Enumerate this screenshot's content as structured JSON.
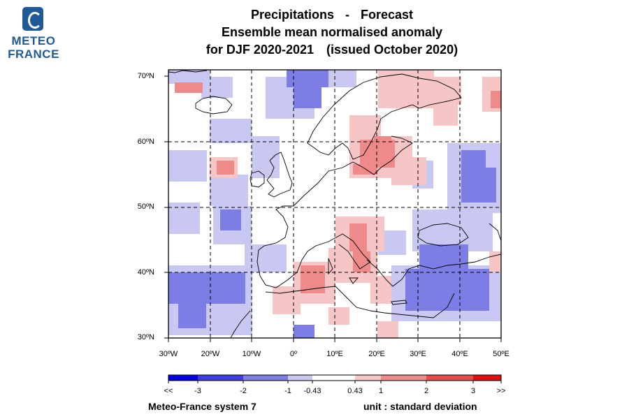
{
  "logo": {
    "word1": "METEO",
    "word2": "FRANCE",
    "color": "#1f5a96"
  },
  "title": {
    "line1_left": "Precipitations",
    "line1_sep": "-",
    "line1_right": "Forecast",
    "line2": "Ensemble mean normalised anomaly",
    "line3_left": "for DJF 2020-2021",
    "line3_right": "(issued October 2020)"
  },
  "map": {
    "lat_labels": [
      "70ºN",
      "60ºN",
      "50ºN",
      "40ºN",
      "30ºN"
    ],
    "lon_labels": [
      "30ºW",
      "20ºW",
      "10ºW",
      "0º",
      "10ºE",
      "20ºE",
      "30ºE",
      "40ºE",
      "50ºE"
    ],
    "lat_range": [
      30,
      70
    ],
    "lon_range": [
      -30,
      50
    ],
    "grid": "dashed"
  },
  "colorbar": {
    "colors": [
      "#0000e8",
      "#3e3ee6",
      "#7d7de6",
      "#c8c8f2",
      "#ffffff",
      "#f6c6c6",
      "#ee8a8a",
      "#ea4a4a",
      "#e60a0a"
    ],
    "labels": [
      "<<",
      "-3",
      "-2",
      "-1",
      "-0.43",
      "0.43",
      "1",
      "2",
      "3",
      ">>"
    ]
  },
  "footer": {
    "system": "Meteo-France system 7",
    "unit": "unit : standard deviation"
  }
}
